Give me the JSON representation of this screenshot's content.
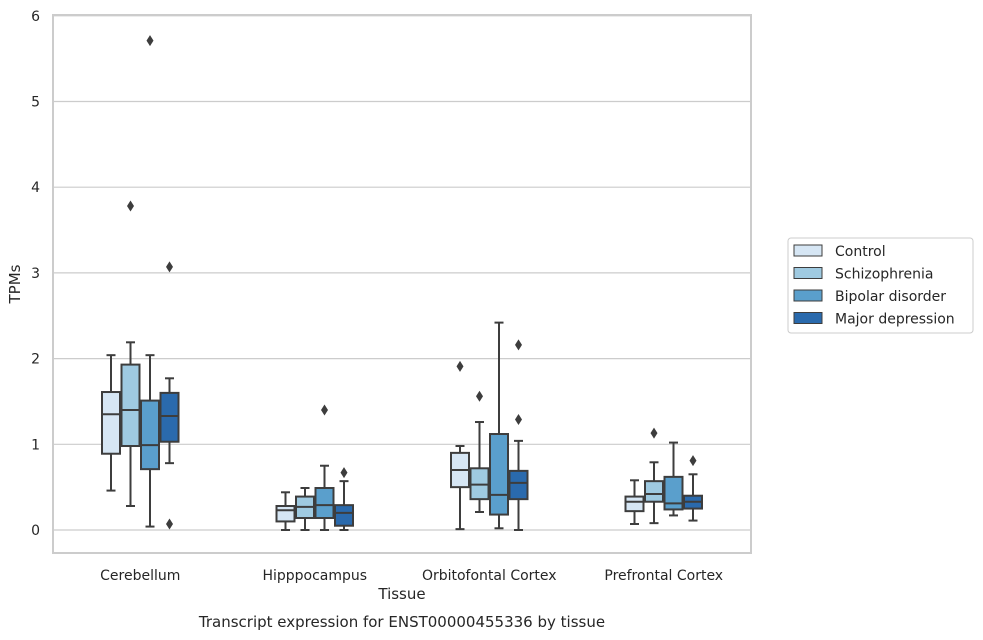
{
  "chart_data": {
    "type": "boxplot",
    "title": "Transcript expression for ENST00000455336 by tissue",
    "xlabel": "Tissue",
    "ylabel": "TPMs",
    "ylim": [
      -0.27,
      6.0
    ],
    "yticks": [
      0,
      1,
      2,
      3,
      4,
      5,
      6
    ],
    "grid": true,
    "legend_position": "right",
    "categories": [
      "Cerebellum",
      "Hipppocampus",
      "Orbitofontal Cortex",
      "Prefrontal Cortex"
    ],
    "series": [
      {
        "name": "Control",
        "color": "#d6e6f4",
        "boxes": [
          {
            "whislo": 0.46,
            "q1": 0.89,
            "med": 1.35,
            "q3": 1.61,
            "whishi": 2.04,
            "fliers": []
          },
          {
            "whislo": 0.0,
            "q1": 0.1,
            "med": 0.23,
            "q3": 0.28,
            "whishi": 0.44,
            "fliers": []
          },
          {
            "whislo": 0.01,
            "q1": 0.5,
            "med": 0.7,
            "q3": 0.9,
            "whishi": 0.98,
            "fliers": [
              1.91
            ]
          },
          {
            "whislo": 0.07,
            "q1": 0.22,
            "med": 0.33,
            "q3": 0.39,
            "whishi": 0.58,
            "fliers": []
          }
        ]
      },
      {
        "name": "Schizophrenia",
        "color": "#9fcae1",
        "boxes": [
          {
            "whislo": 0.28,
            "q1": 0.98,
            "med": 1.4,
            "q3": 1.93,
            "whishi": 2.19,
            "fliers": [
              3.78
            ]
          },
          {
            "whislo": 0.0,
            "q1": 0.14,
            "med": 0.27,
            "q3": 0.39,
            "whishi": 0.49,
            "fliers": []
          },
          {
            "whislo": 0.21,
            "q1": 0.36,
            "med": 0.53,
            "q3": 0.72,
            "whishi": 1.26,
            "fliers": [
              1.56
            ]
          },
          {
            "whislo": 0.08,
            "q1": 0.33,
            "med": 0.42,
            "q3": 0.57,
            "whishi": 0.79,
            "fliers": [
              1.13
            ]
          }
        ]
      },
      {
        "name": "Bipolar disorder",
        "color": "#5a9fcc",
        "boxes": [
          {
            "whislo": 0.04,
            "q1": 0.71,
            "med": 0.99,
            "q3": 1.51,
            "whishi": 2.04,
            "fliers": [
              5.71
            ]
          },
          {
            "whislo": 0.0,
            "q1": 0.14,
            "med": 0.29,
            "q3": 0.49,
            "whishi": 0.75,
            "fliers": [
              1.4
            ]
          },
          {
            "whislo": 0.02,
            "q1": 0.18,
            "med": 0.41,
            "q3": 1.12,
            "whishi": 2.42,
            "fliers": []
          },
          {
            "whislo": 0.17,
            "q1": 0.24,
            "med": 0.31,
            "q3": 0.62,
            "whishi": 1.02,
            "fliers": []
          }
        ]
      },
      {
        "name": "Major depression",
        "color": "#2a6aad",
        "boxes": [
          {
            "whislo": 0.78,
            "q1": 1.03,
            "med": 1.33,
            "q3": 1.6,
            "whishi": 1.77,
            "fliers": [
              3.07,
              0.07
            ]
          },
          {
            "whislo": 0.0,
            "q1": 0.05,
            "med": 0.2,
            "q3": 0.29,
            "whishi": 0.57,
            "fliers": [
              0.67
            ]
          },
          {
            "whislo": 0.0,
            "q1": 0.36,
            "med": 0.55,
            "q3": 0.69,
            "whishi": 1.04,
            "fliers": [
              2.16,
              1.29
            ]
          },
          {
            "whislo": 0.11,
            "q1": 0.25,
            "med": 0.33,
            "q3": 0.4,
            "whishi": 0.65,
            "fliers": [
              0.81
            ]
          }
        ]
      }
    ]
  }
}
